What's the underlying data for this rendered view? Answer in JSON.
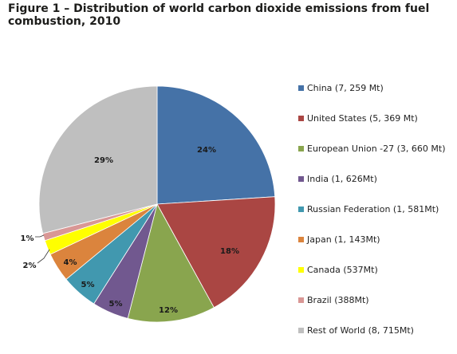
{
  "chart_data": {
    "type": "pie",
    "title": "Figure 1 – Distribution of world carbon dioxide emissions from fuel combustion, 2010",
    "legend_position": "right",
    "slices": [
      {
        "name": "China (7, 259 Mt)",
        "value": 24,
        "label": "24%",
        "color": "#4572a7"
      },
      {
        "name": "United States (5, 369 Mt)",
        "value": 18,
        "label": "18%",
        "color": "#aa4643"
      },
      {
        "name": "European Union -27 (3, 660 Mt)",
        "value": 12,
        "label": "12%",
        "color": "#89a54e"
      },
      {
        "name": "India (1, 626Mt)",
        "value": 5,
        "label": "5%",
        "color": "#71588f"
      },
      {
        "name": "Russian Federation (1, 581Mt)",
        "value": 5,
        "label": "5%",
        "color": "#4198af"
      },
      {
        "name": "Japan (1, 143Mt)",
        "value": 4,
        "label": "4%",
        "color": "#db843d"
      },
      {
        "name": "Canada (537Mt)",
        "value": 2,
        "label": "2%",
        "color": "#ffff00"
      },
      {
        "name": "Brazil (388Mt)",
        "value": 1,
        "label": "1%",
        "color": "#d99795"
      },
      {
        "name": "Rest of World (8, 715Mt)",
        "value": 29,
        "label": "29%",
        "color": "#bfbfbf"
      }
    ]
  }
}
